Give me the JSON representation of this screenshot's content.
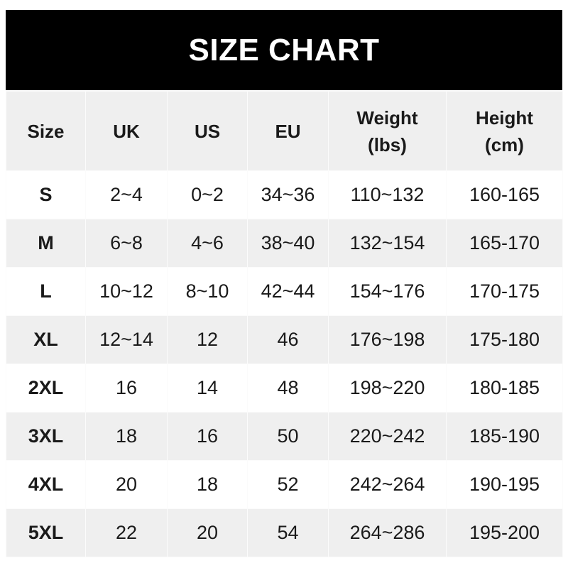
{
  "title": "SIZE CHART",
  "columns": [
    "Size",
    "UK",
    "US",
    "EU",
    "Weight (lbs)",
    "Height (cm)"
  ],
  "header_lines": [
    [
      "Size"
    ],
    [
      "UK"
    ],
    [
      "US"
    ],
    [
      "EU"
    ],
    [
      "Weight",
      "(lbs)"
    ],
    [
      "Height",
      "(cm)"
    ]
  ],
  "rows": [
    [
      "S",
      "2~4",
      "0~2",
      "34~36",
      "110~132",
      "160-165"
    ],
    [
      "M",
      "6~8",
      "4~6",
      "38~40",
      "132~154",
      "165-170"
    ],
    [
      "L",
      "10~12",
      "8~10",
      "42~44",
      "154~176",
      "170-175"
    ],
    [
      "XL",
      "12~14",
      "12",
      "46",
      "176~198",
      "175-180"
    ],
    [
      "2XL",
      "16",
      "14",
      "48",
      "198~220",
      "180-185"
    ],
    [
      "3XL",
      "18",
      "16",
      "50",
      "220~242",
      "185-190"
    ],
    [
      "4XL",
      "20",
      "18",
      "52",
      "242~264",
      "190-195"
    ],
    [
      "5XL",
      "22",
      "20",
      "54",
      "264~286",
      "195-200"
    ]
  ]
}
